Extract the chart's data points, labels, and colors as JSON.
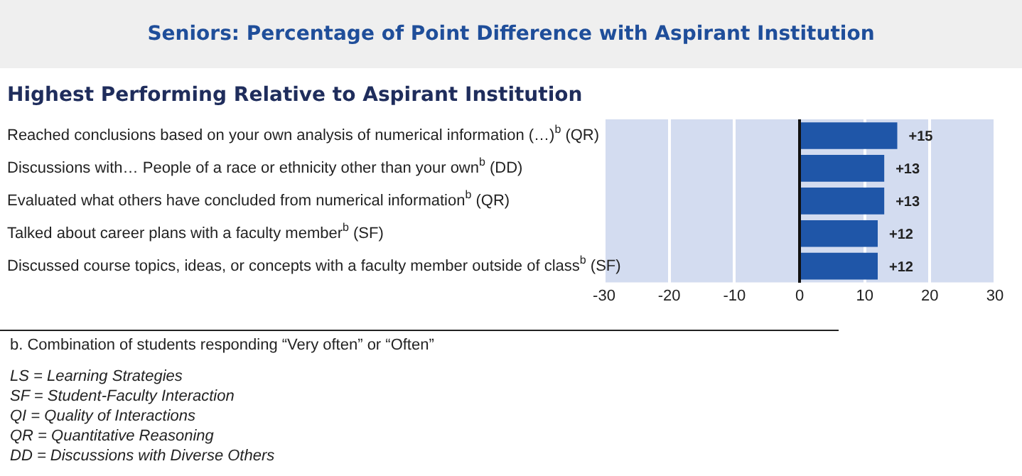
{
  "chart_data": {
    "type": "bar",
    "orientation": "horizontal",
    "title": "Seniors: Percentage of Point Difference with Aspirant Institution",
    "subtitle": "Highest Performing Relative to Aspirant Institution",
    "categories": [
      "Reached conclusions based on your own analysis of numerical information (…)$^{b}$ (QR)",
      "Discussions with… People of a race or ethnicity other than your own$^{b}$ (DD)",
      "Evaluated what others have concluded from numerical information$^{b}$ (QR)",
      "Talked about career plans with a faculty member$^{b}$ (SF)",
      "Discussed course topics, ideas, or concepts with a faculty member outside of class$^{b}$ (SF)"
    ],
    "values": [
      15,
      13,
      13,
      12,
      12
    ],
    "value_labels": [
      "+15",
      "+13",
      "+13",
      "+12",
      "+12"
    ],
    "color": "#1f56a8",
    "xlim": [
      -30,
      30
    ],
    "xticks": [
      -30,
      -20,
      -10,
      0,
      10,
      20,
      30
    ],
    "grid": "x",
    "legend": false,
    "annotations": [
      "b. Combination of students responding “Very often” or “Often”",
      "LS = Learning Strategies",
      "SF = Student-Faculty Interaction",
      "QI = Quality of Interactions",
      "QR = Quantitative Reasoning",
      "DD = Discussions with Diverse Others"
    ]
  }
}
